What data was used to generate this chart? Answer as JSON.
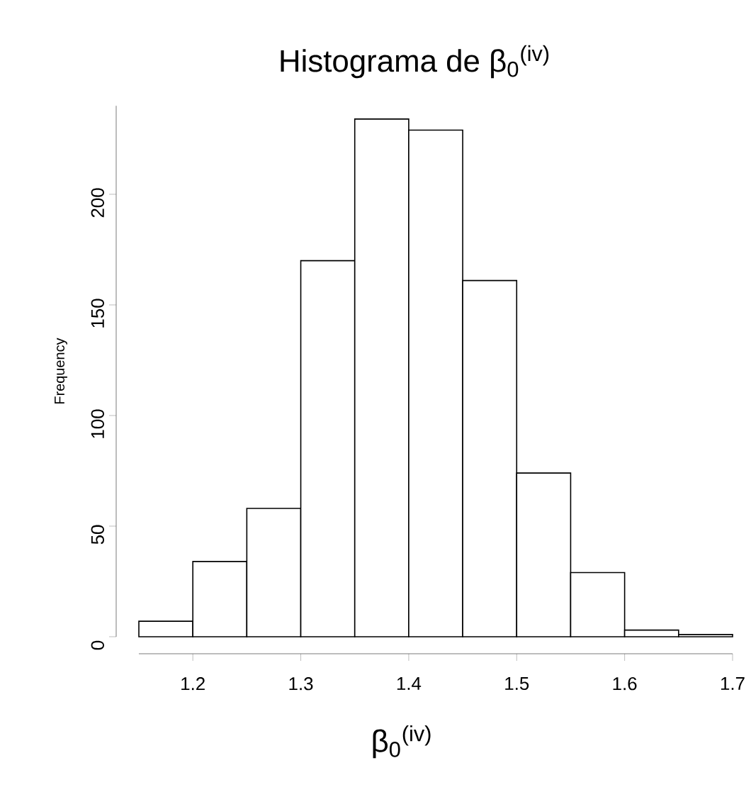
{
  "chart_data": {
    "type": "histogram",
    "title": "Histograma de β$_{0}$$^{(iv)}$",
    "xlabel": "β$_{0}$$^{(iv)}$",
    "ylabel": "Frequency",
    "bins": [
      1.15,
      1.2,
      1.25,
      1.3,
      1.35,
      1.4,
      1.45,
      1.5,
      1.55,
      1.6,
      1.65,
      1.7
    ],
    "values": [
      7,
      34,
      58,
      170,
      234,
      229,
      161,
      74,
      29,
      3,
      1
    ],
    "color": "#ffffff",
    "xlim": [
      1.15,
      1.7
    ],
    "xticks": [
      1.2,
      1.3,
      1.4,
      1.5,
      1.6,
      1.7
    ],
    "ylim": [
      0,
      240
    ],
    "yticks": [
      0,
      50,
      100,
      150,
      200
    ],
    "grid": false
  }
}
